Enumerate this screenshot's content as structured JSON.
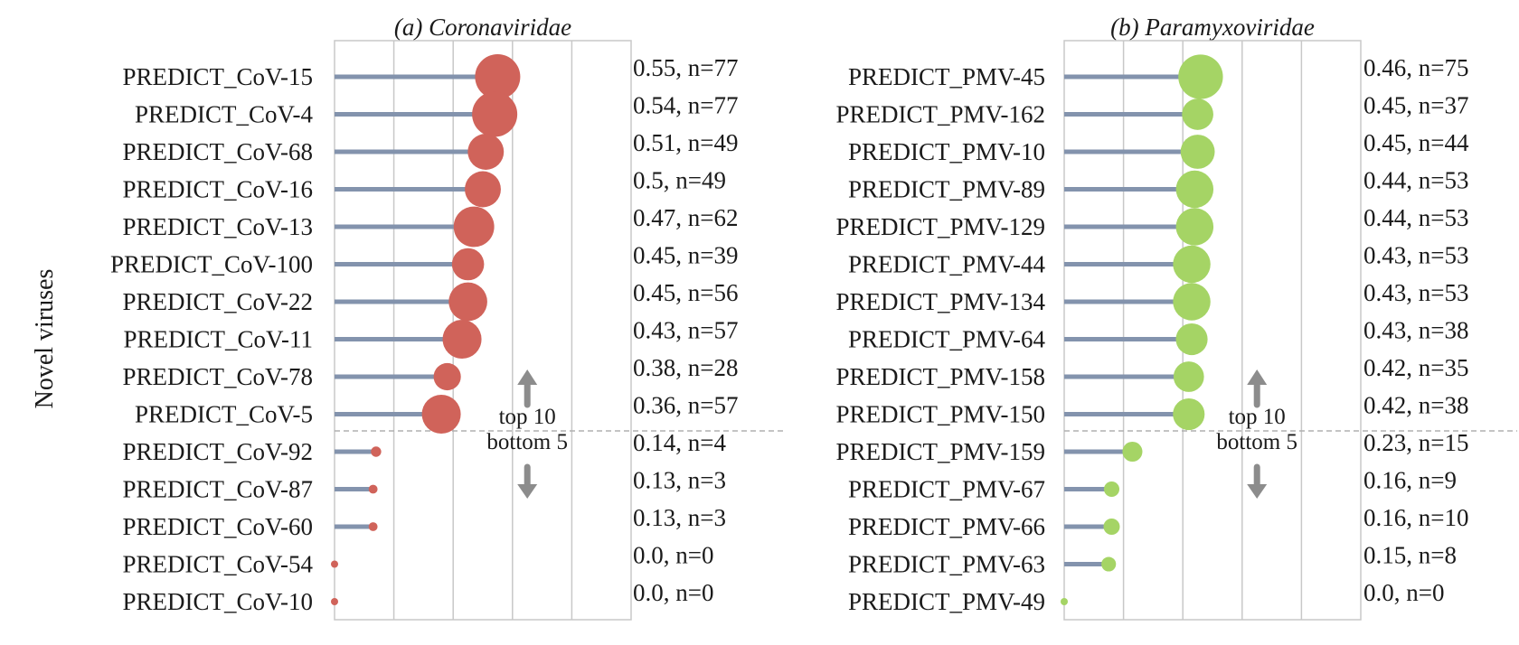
{
  "ylabel": "Novel viruses",
  "divider": {
    "top_label": "top 10",
    "bottom_label": "bottom 5"
  },
  "chart_data": [
    {
      "type": "lollipop",
      "title": "(a) Coronaviridae",
      "color": "#d0635a",
      "stem_color": "#8393ad",
      "xlim": [
        0,
        1
      ],
      "grid": true,
      "categories": [
        "PREDICT_CoV-15",
        "PREDICT_CoV-4",
        "PREDICT_CoV-68",
        "PREDICT_CoV-16",
        "PREDICT_CoV-13",
        "PREDICT_CoV-100",
        "PREDICT_CoV-22",
        "PREDICT_CoV-11",
        "PREDICT_CoV-78",
        "PREDICT_CoV-5",
        "PREDICT_CoV-92",
        "PREDICT_CoV-87",
        "PREDICT_CoV-60",
        "PREDICT_CoV-54",
        "PREDICT_CoV-10"
      ],
      "values": [
        0.55,
        0.54,
        0.51,
        0.5,
        0.47,
        0.45,
        0.45,
        0.43,
        0.38,
        0.36,
        0.14,
        0.13,
        0.13,
        0.0,
        0.0
      ],
      "n": [
        77,
        77,
        49,
        49,
        62,
        39,
        56,
        57,
        28,
        57,
        4,
        3,
        3,
        0,
        0
      ],
      "value_labels": [
        "0.55, n=77",
        "0.54, n=77",
        "0.51, n=49",
        "0.5, n=49",
        "0.47, n=62",
        "0.45, n=39",
        "0.45, n=56",
        "0.43, n=57",
        "0.38, n=28",
        "0.36, n=57",
        "0.14, n=4",
        "0.13, n=3",
        "0.13, n=3",
        "0.0, n=0",
        "0.0, n=0"
      ]
    },
    {
      "type": "lollipop",
      "title": "(b) Paramyxoviridae",
      "color": "#a5d465",
      "stem_color": "#8393ad",
      "xlim": [
        0,
        1
      ],
      "grid": true,
      "categories": [
        "PREDICT_PMV-45",
        "PREDICT_PMV-162",
        "PREDICT_PMV-10",
        "PREDICT_PMV-89",
        "PREDICT_PMV-129",
        "PREDICT_PMV-44",
        "PREDICT_PMV-134",
        "PREDICT_PMV-64",
        "PREDICT_PMV-158",
        "PREDICT_PMV-150",
        "PREDICT_PMV-159",
        "PREDICT_PMV-67",
        "PREDICT_PMV-66",
        "PREDICT_PMV-63",
        "PREDICT_PMV-49"
      ],
      "values": [
        0.46,
        0.45,
        0.45,
        0.44,
        0.44,
        0.43,
        0.43,
        0.43,
        0.42,
        0.42,
        0.23,
        0.16,
        0.16,
        0.15,
        0.0
      ],
      "n": [
        75,
        37,
        44,
        53,
        53,
        53,
        53,
        38,
        35,
        38,
        15,
        9,
        10,
        8,
        0
      ],
      "value_labels": [
        "0.46, n=75",
        "0.45, n=37",
        "0.45, n=44",
        "0.44, n=53",
        "0.44, n=53",
        "0.43, n=53",
        "0.43, n=53",
        "0.43, n=38",
        "0.42, n=35",
        "0.42, n=38",
        "0.23, n=15",
        "0.16, n=9",
        "0.16, n=10",
        "0.15, n=8",
        "0.0, n=0"
      ]
    }
  ]
}
